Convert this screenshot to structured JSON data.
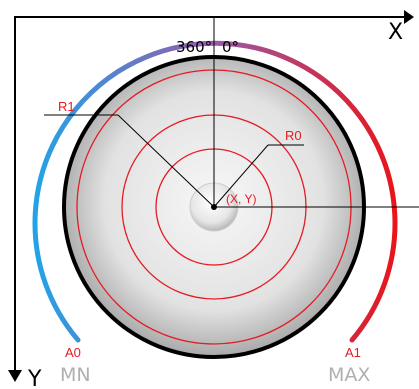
{
  "axes": {
    "x_label": "X",
    "y_label": "Y"
  },
  "angle_labels": {
    "start": "360°",
    "end": "0°"
  },
  "radius_labels": {
    "r1": "R1",
    "r0": "R0"
  },
  "center_label": "(X, Y)",
  "arc_labels": {
    "a0": "A0",
    "a1": "A1",
    "min": "MN",
    "max": "MAX"
  },
  "colors": {
    "axis": "#000000",
    "arc_min": "#22a3e8",
    "arc_mid": "#9a5aa8",
    "arc_max": "#e8151b",
    "ring": "#e51b24",
    "rim": "#000000",
    "knob_outer": "#b5b5b5",
    "knob_inner": "#f2f2f2",
    "min_label": "#b0b0b0"
  }
}
